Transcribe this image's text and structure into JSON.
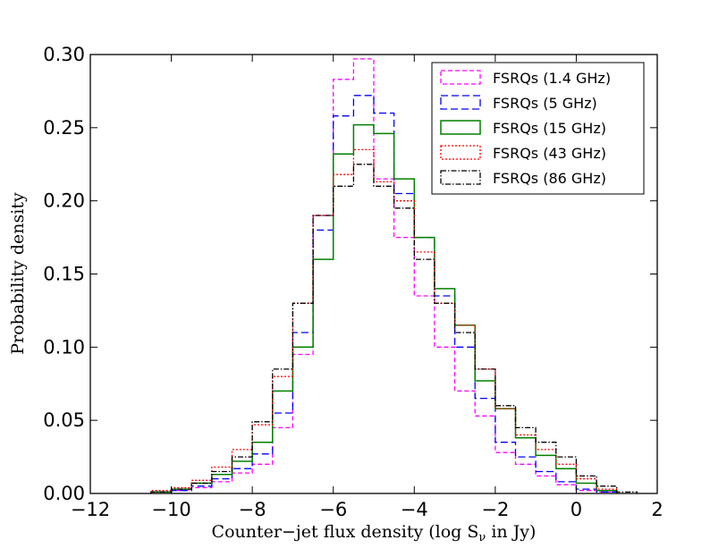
{
  "chart_data": {
    "type": "step-histogram",
    "title": "",
    "xlabel": "Counter−jet flux density (log S",
    "xlabel_sub": "ν",
    "xlabel_tail": " in Jy)",
    "ylabel": "Probability density",
    "xlim": [
      -12,
      2
    ],
    "ylim": [
      0,
      0.3
    ],
    "xticks": [
      -12,
      -10,
      -8,
      -6,
      -4,
      -2,
      0,
      2
    ],
    "xtick_labels": [
      "−12",
      "−10",
      "−8",
      "−6",
      "−4",
      "−2",
      "0",
      "2"
    ],
    "yticks": [
      0,
      0.05,
      0.1,
      0.15,
      0.2,
      0.25,
      0.3
    ],
    "ytick_labels": [
      "0.00",
      "0.05",
      "0.10",
      "0.15",
      "0.20",
      "0.25",
      "0.30"
    ],
    "legend_position": "top-right",
    "series": [
      {
        "name": "FSRQs (1.4 GHz)",
        "color": "#ff00ff",
        "dash": "5,3",
        "width": 1.3,
        "edges": [
          -10.5,
          -10,
          -9.5,
          -9,
          -8.5,
          -8,
          -7.5,
          -7,
          -6.5,
          -6,
          -5.5,
          -5,
          -4.5,
          -4,
          -3.5,
          -3,
          -2.5,
          -2,
          -1.5,
          -1,
          -0.5,
          0,
          0.5,
          1
        ],
        "values": [
          0.001,
          0.002,
          0.004,
          0.008,
          0.014,
          0.02,
          0.045,
          0.095,
          0.19,
          0.283,
          0.297,
          0.215,
          0.175,
          0.135,
          0.1,
          0.07,
          0.053,
          0.028,
          0.02,
          0.012,
          0.006,
          0.002,
          0.001
        ]
      },
      {
        "name": "FSRQs (5 GHz)",
        "color": "#0000ff",
        "dash": "8,4",
        "width": 1.3,
        "edges": [
          -10.5,
          -10,
          -9.5,
          -9,
          -8.5,
          -8,
          -7.5,
          -7,
          -6.5,
          -6,
          -5.5,
          -5,
          -4.5,
          -4,
          -3.5,
          -3,
          -2.5,
          -2,
          -1.5,
          -1,
          -0.5,
          0,
          0.5,
          1
        ],
        "values": [
          0.001,
          0.002,
          0.005,
          0.01,
          0.017,
          0.027,
          0.055,
          0.11,
          0.18,
          0.258,
          0.272,
          0.26,
          0.205,
          0.175,
          0.135,
          0.1,
          0.065,
          0.035,
          0.025,
          0.015,
          0.008,
          0.003,
          0.001
        ]
      },
      {
        "name": "FSRQs (15 GHz)",
        "color": "#008000",
        "dash": "",
        "width": 1.5,
        "edges": [
          -10.5,
          -10,
          -9.5,
          -9,
          -8.5,
          -8,
          -7.5,
          -7,
          -6.5,
          -6,
          -5.5,
          -5,
          -4.5,
          -4,
          -3.5,
          -3,
          -2.5,
          -2,
          -1.5,
          -1,
          -0.5,
          0,
          0.5,
          1
        ],
        "values": [
          0.001,
          0.003,
          0.007,
          0.013,
          0.022,
          0.035,
          0.07,
          0.1,
          0.16,
          0.232,
          0.252,
          0.246,
          0.215,
          0.175,
          0.14,
          0.115,
          0.077,
          0.058,
          0.038,
          0.026,
          0.017,
          0.007,
          0.002
        ]
      },
      {
        "name": "FSRQs (43 GHz)",
        "color": "#ff0000",
        "dash": "2,2",
        "width": 1.3,
        "edges": [
          -10.5,
          -10,
          -9.5,
          -9,
          -8.5,
          -8,
          -7.5,
          -7,
          -6.5,
          -6,
          -5.5,
          -5,
          -4.5,
          -4,
          -3.5,
          -3,
          -2.5,
          -2,
          -1.5,
          -1,
          -0.5,
          0,
          0.5,
          1
        ],
        "values": [
          0.002,
          0.004,
          0.009,
          0.018,
          0.03,
          0.047,
          0.08,
          0.13,
          0.19,
          0.218,
          0.235,
          0.213,
          0.2,
          0.165,
          0.13,
          0.115,
          0.085,
          0.058,
          0.04,
          0.03,
          0.02,
          0.01,
          0.003
        ]
      },
      {
        "name": "FSRQs (86 GHz)",
        "color": "#000000",
        "dash": "6,2,1.5,2",
        "width": 1.3,
        "edges": [
          -10.5,
          -10,
          -9.5,
          -9,
          -8.5,
          -8,
          -7.5,
          -7,
          -6.5,
          -6,
          -5.5,
          -5,
          -4.5,
          -4,
          -3.5,
          -3,
          -2.5,
          -2,
          -1.5,
          -1,
          -0.5,
          0,
          0.5,
          1,
          1.5
        ],
        "values": [
          0.001,
          0.003,
          0.007,
          0.015,
          0.025,
          0.049,
          0.085,
          0.13,
          0.19,
          0.21,
          0.225,
          0.21,
          0.195,
          0.16,
          0.13,
          0.11,
          0.085,
          0.06,
          0.045,
          0.035,
          0.025,
          0.012,
          0.005,
          0.001
        ]
      }
    ]
  }
}
